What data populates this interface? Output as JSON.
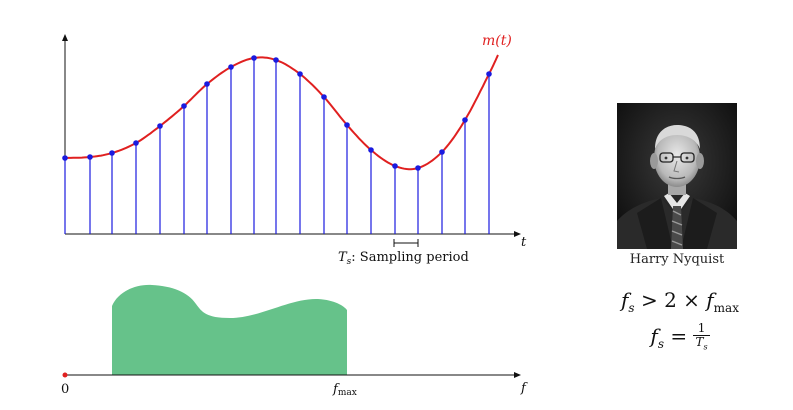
{
  "signal_plot": {
    "curve_label": "m(t)",
    "t_axis_label": "t",
    "sampling_label": "T",
    "sampling_label_sub": "s",
    "sampling_label_text": ": Sampling period",
    "colors": {
      "curve": "#e02020",
      "samples": "#1a1adf",
      "axis": "#111111"
    },
    "sample_count": 19
  },
  "spectrum_plot": {
    "origin_label": "0",
    "fmax_label": "f",
    "fmax_sub": "max",
    "f_axis_label": "f",
    "fill_color": "#66c28a",
    "origin_color": "#e02020"
  },
  "person": {
    "caption": "Harry Nyquist"
  },
  "equations": {
    "eq1_fs": "f",
    "eq1_fs_sub": "s",
    "eq1_rel": " > 2 × ",
    "eq1_f": "f",
    "eq1_f_sub": "max",
    "eq2_fs": "f",
    "eq2_fs_sub": "s",
    "eq2_rel": " = ",
    "eq2_num": "1",
    "eq2_den": "T",
    "eq2_den_sub": "s"
  }
}
